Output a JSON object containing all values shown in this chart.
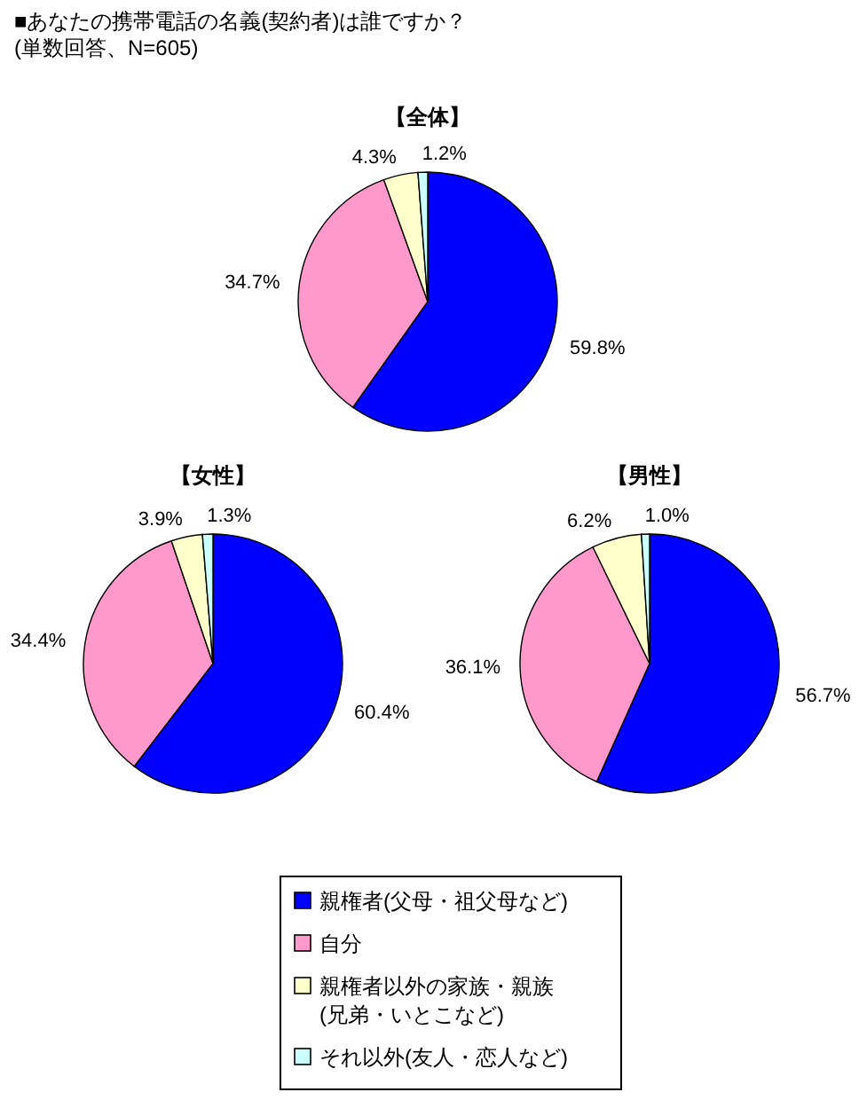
{
  "chart_data": [
    {
      "type": "pie",
      "title": "【全体】",
      "annotations": [
        "■あなたの携帯電話の名義(契約者)は誰ですか？",
        "(単数回答、N=605)"
      ],
      "categories": [
        "親権者(父母・祖父母など)",
        "自分",
        "親権者以外の家族・親族(兄弟・いとこなど)",
        "それ以外(友人・恋人など)"
      ],
      "values": [
        59.8,
        34.7,
        4.3,
        1.2
      ],
      "value_labels": [
        "59.8%",
        "34.7%",
        "4.3%",
        "1.2%"
      ],
      "colors": [
        "#0000ff",
        "#ff99cc",
        "#ffffcc",
        "#ccffff"
      ],
      "legend": "bottom"
    },
    {
      "type": "pie",
      "title": "【女性】",
      "categories": [
        null,
        null,
        null,
        null
      ],
      "values": [
        60.4,
        34.4,
        3.9,
        1.3
      ],
      "value_labels": [
        "60.4%",
        "34.4%",
        "3.9%",
        "1.3%"
      ],
      "colors": [
        "#0000ff",
        "#ff99cc",
        "#ffffcc",
        "#ccffff"
      ]
    },
    {
      "type": "pie",
      "title": "【男性】",
      "categories": [
        null,
        null,
        null,
        null
      ],
      "values": [
        56.7,
        36.1,
        6.2,
        1.0
      ],
      "value_labels": [
        "56.7%",
        "36.1%",
        "6.2%",
        "1.0%"
      ],
      "colors": [
        "#0000ff",
        "#ff99cc",
        "#ffffcc",
        "#ccffff"
      ]
    }
  ]
}
